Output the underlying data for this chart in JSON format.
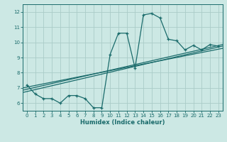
{
  "xlabel": "Humidex (Indice chaleur)",
  "background_color": "#cce8e4",
  "grid_color": "#aaccc8",
  "line_color": "#1a6b6b",
  "xlim": [
    -0.5,
    23.5
  ],
  "ylim": [
    5.5,
    12.5
  ],
  "xticks": [
    0,
    1,
    2,
    3,
    4,
    5,
    6,
    7,
    8,
    9,
    10,
    11,
    12,
    13,
    14,
    15,
    16,
    17,
    18,
    19,
    20,
    21,
    22,
    23
  ],
  "yticks": [
    6,
    7,
    8,
    9,
    10,
    11,
    12
  ],
  "x_data": [
    0,
    1,
    2,
    3,
    4,
    5,
    6,
    7,
    8,
    9,
    10,
    11,
    12,
    13,
    14,
    15,
    16,
    17,
    18,
    19,
    20,
    21,
    22,
    23
  ],
  "y_data": [
    7.2,
    6.6,
    6.3,
    6.3,
    6.0,
    6.5,
    6.5,
    6.3,
    5.7,
    5.7,
    9.2,
    10.6,
    10.6,
    8.3,
    11.8,
    11.9,
    11.6,
    10.2,
    10.1,
    9.5,
    9.8,
    9.5,
    9.85,
    9.75
  ],
  "reg_lines": [
    [
      6.85,
      9.85
    ],
    [
      7.0,
      9.6
    ],
    [
      6.7,
      9.75
    ]
  ]
}
